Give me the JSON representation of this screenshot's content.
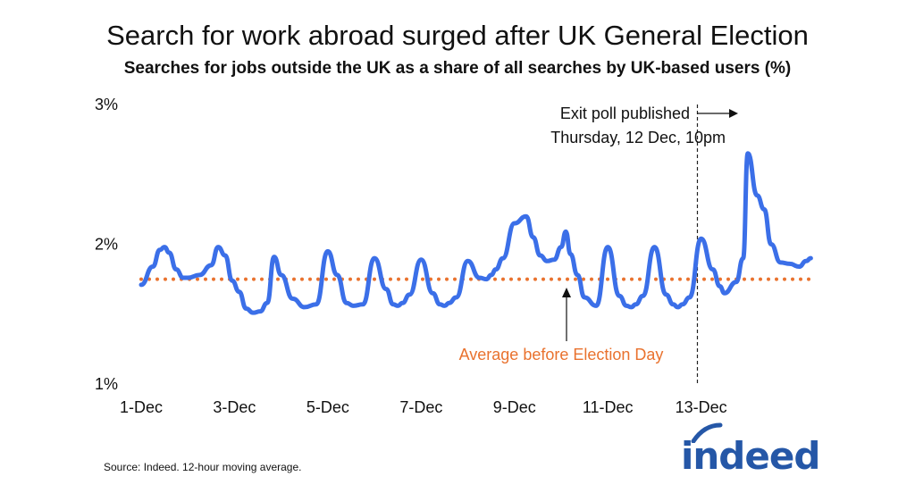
{
  "title": "Search for work abroad surged after UK General Election",
  "subtitle": "Searches for jobs outside the UK as a share of all searches by UK-based users (%)",
  "source": "Source: Indeed. 12-hour moving average.",
  "logo_text": "indeed",
  "chart_data": {
    "type": "line",
    "title": "Search for work abroad surged after UK General Election",
    "subtitle": "Searches for jobs outside the UK as a share of all searches by UK-based users (%)",
    "xlabel": "",
    "ylabel": "",
    "x_unit": "days since 1-Dec 00:00",
    "xlim": [
      0,
      14.4
    ],
    "ylim": [
      1,
      3
    ],
    "yticks": [
      1,
      2,
      3
    ],
    "ytick_labels": [
      "1%",
      "2%",
      "3%"
    ],
    "xticks": [
      0,
      2,
      4,
      6,
      8,
      10,
      12
    ],
    "xtick_labels": [
      "1-Dec",
      "3-Dec",
      "5-Dec",
      "7-Dec",
      "9-Dec",
      "11-Dec",
      "13-Dec"
    ],
    "grid": false,
    "series": [
      {
        "name": "",
        "color": "#3b6fe8",
        "x": [
          0,
          0.25,
          0.4,
          0.5,
          0.6,
          0.75,
          0.9,
          1.0,
          1.25,
          1.5,
          1.65,
          1.8,
          1.95,
          2.1,
          2.25,
          2.4,
          2.55,
          2.7,
          2.85,
          3.0,
          3.25,
          3.5,
          3.75,
          4.0,
          4.2,
          4.4,
          4.55,
          4.75,
          5.0,
          5.25,
          5.4,
          5.5,
          5.6,
          5.75,
          6.0,
          6.25,
          6.4,
          6.5,
          6.6,
          6.75,
          7.0,
          7.25,
          7.4,
          7.5,
          7.6,
          7.75,
          8.0,
          8.25,
          8.4,
          8.55,
          8.7,
          8.85,
          9.0,
          9.1,
          9.2,
          9.35,
          9.5,
          9.75,
          10.0,
          10.25,
          10.4,
          10.5,
          10.6,
          10.75,
          11.0,
          11.25,
          11.4,
          11.5,
          11.6,
          11.75,
          12.0,
          12.25,
          12.4,
          12.5,
          12.75,
          12.9,
          13.0,
          13.2,
          13.35,
          13.5,
          13.7,
          13.9,
          14.1,
          14.25,
          14.35
        ],
        "y": [
          1.71,
          1.84,
          1.96,
          1.98,
          1.94,
          1.82,
          1.76,
          1.76,
          1.78,
          1.85,
          1.98,
          1.92,
          1.74,
          1.66,
          1.54,
          1.51,
          1.52,
          1.58,
          1.91,
          1.78,
          1.61,
          1.55,
          1.57,
          1.95,
          1.78,
          1.58,
          1.56,
          1.57,
          1.9,
          1.68,
          1.57,
          1.56,
          1.58,
          1.64,
          1.89,
          1.65,
          1.57,
          1.56,
          1.58,
          1.62,
          1.88,
          1.76,
          1.75,
          1.78,
          1.82,
          1.9,
          2.15,
          2.2,
          2.05,
          1.92,
          1.88,
          1.89,
          1.98,
          2.09,
          1.93,
          1.78,
          1.62,
          1.56,
          1.98,
          1.63,
          1.56,
          1.55,
          1.57,
          1.63,
          1.98,
          1.64,
          1.57,
          1.55,
          1.57,
          1.62,
          2.04,
          1.82,
          1.7,
          1.65,
          1.73,
          1.9,
          2.65,
          2.35,
          2.25,
          2.0,
          1.87,
          1.86,
          1.84,
          1.88,
          1.9
        ]
      },
      {
        "name": "Average before Election Day",
        "color": "#e9722e",
        "style": "dotted",
        "x": [
          0,
          14.4
        ],
        "y": [
          1.75,
          1.75
        ]
      }
    ],
    "annotations": [
      {
        "text": "Exit poll published",
        "text2": "Thursday, 12 Dec, 10pm",
        "x": 11.92,
        "style": "dashed-vertical"
      },
      {
        "text": "Average before Election Day",
        "x": 9.0,
        "y": 1.75,
        "color": "#e9722e"
      }
    ]
  }
}
